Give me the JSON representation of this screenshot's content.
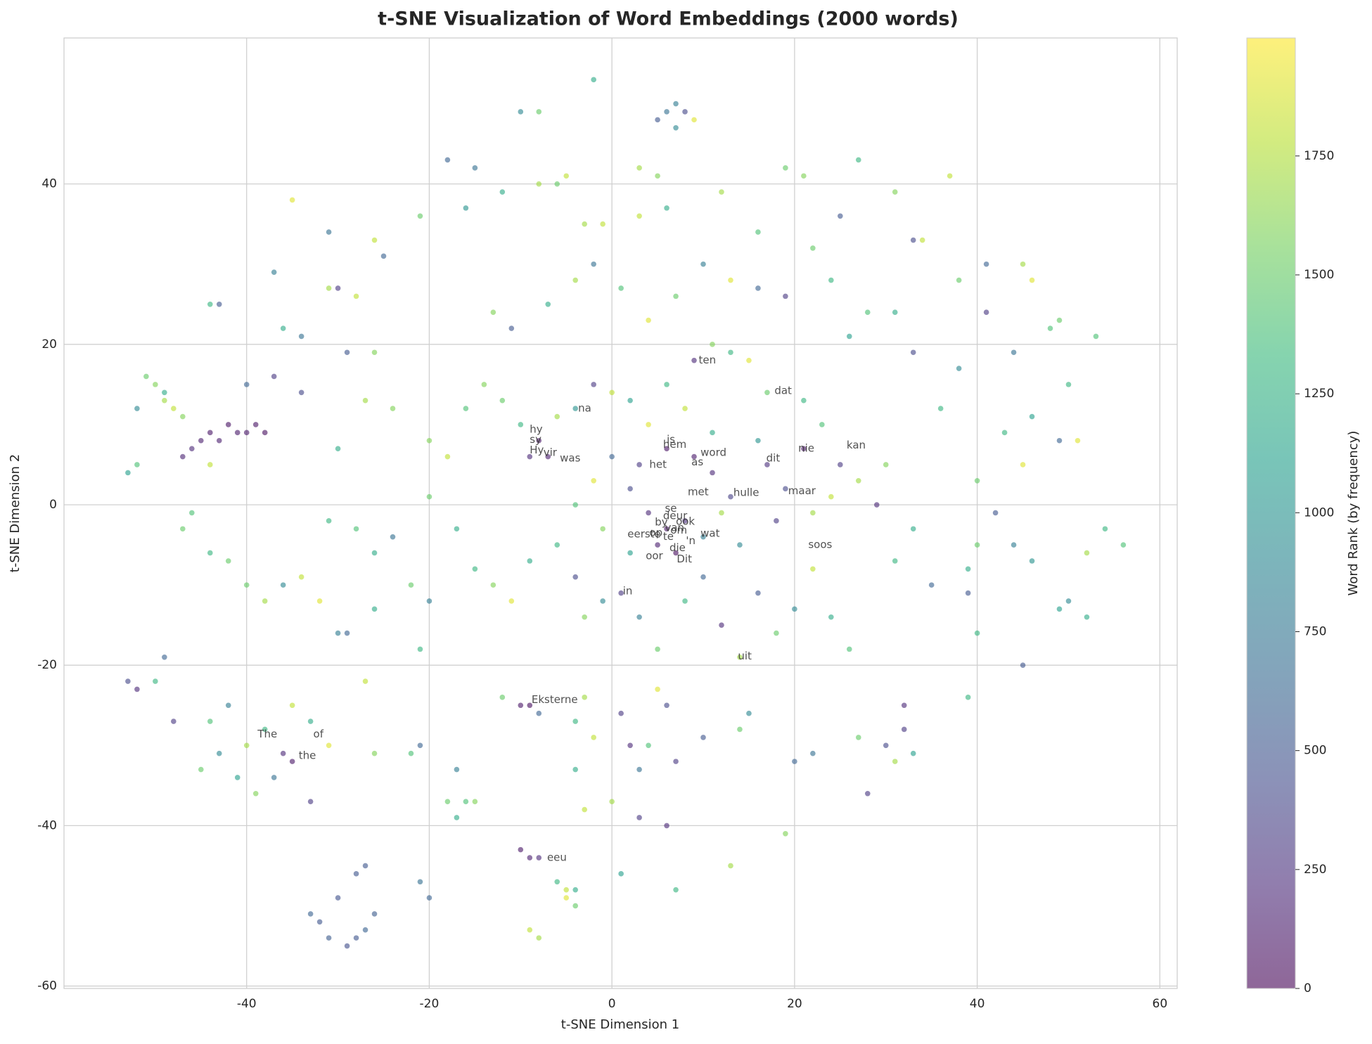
{
  "chart_data": {
    "type": "scatter",
    "title": "t-SNE Visualization of Word Embeddings (2000 words)",
    "x_label": "t-SNE Dimension 1",
    "y_label": "t-SNE Dimension 2",
    "colorbar_label": "Word Rank (by frequency)",
    "colormap": "viridis",
    "alpha": 0.6,
    "grid": true,
    "xlim": [
      -60,
      61.9
    ],
    "ylim": [
      -60.3,
      58.2
    ],
    "xticks": [
      -40,
      -20,
      0,
      20,
      40,
      60
    ],
    "yticks": [
      -60,
      -40,
      -20,
      0,
      20,
      40
    ],
    "clim": [
      0,
      1998
    ],
    "cticks": [
      0,
      250,
      500,
      750,
      1000,
      1250,
      1500,
      1750
    ],
    "x": [
      -44,
      -43,
      -42,
      -41,
      -39,
      -38,
      -46,
      -47,
      -40,
      -45,
      -51,
      -50,
      -49,
      -48,
      -52,
      -53,
      -52,
      -47,
      -49,
      -44,
      -43,
      -44,
      -37,
      -31,
      -30,
      -31,
      -28,
      -35,
      -26,
      -25,
      -36,
      -34,
      -40,
      -37,
      -34,
      -26,
      -29,
      -27,
      -24,
      -30,
      -46,
      -47,
      -44,
      -42,
      -40,
      -38,
      -36,
      -34,
      -32,
      -30,
      -31,
      -28,
      -26,
      -24,
      -22,
      -20,
      -21,
      -26,
      -29,
      -27,
      -53,
      -52,
      -50,
      -48,
      -49,
      -44,
      -42,
      -40,
      -38,
      -36,
      -35,
      -33,
      -35,
      -41,
      -43,
      -45,
      -39,
      -37,
      -33,
      -31,
      -33,
      -32,
      -31,
      -29,
      -28,
      -27,
      -26,
      -28,
      -27,
      -30,
      -21,
      -20,
      -21,
      -26,
      -22,
      -18,
      -17,
      -16,
      -17,
      -15,
      -10,
      -9,
      -8,
      -6,
      -5,
      -4,
      -5,
      -4,
      -9,
      -8,
      -10,
      -9,
      -12,
      -8,
      -3,
      -4,
      -2,
      -4,
      -3,
      0,
      1,
      2,
      4,
      3,
      5,
      6,
      3,
      6,
      7,
      1,
      7,
      10,
      13,
      14,
      15,
      19,
      20,
      22,
      28,
      27,
      31,
      30,
      32,
      32,
      33,
      45,
      39,
      49,
      50,
      52,
      -8,
      -6,
      -5,
      -3,
      -1,
      -2,
      3,
      5,
      3,
      6,
      5,
      6,
      7,
      8,
      9,
      7,
      -10,
      -8,
      -18,
      -15,
      -21,
      -16,
      -12,
      19,
      21,
      27,
      31,
      37,
      12,
      16,
      25,
      33,
      34,
      41,
      45,
      46,
      41,
      44,
      48,
      49,
      53,
      50,
      46,
      43,
      49,
      51,
      38,
      38,
      36,
      40,
      45,
      42,
      40,
      44,
      46,
      54,
      56,
      52,
      39,
      39,
      40,
      35,
      31,
      33,
      29,
      27,
      30,
      25,
      23,
      21,
      17,
      15,
      13,
      11,
      9,
      8,
      6,
      4,
      2,
      0,
      -2,
      -4,
      -6,
      -9,
      -8,
      -7,
      -10,
      -12,
      -14,
      -16,
      -18,
      -20,
      -20,
      -17,
      -15,
      -13,
      -11,
      -9,
      -6,
      -4,
      -3,
      -1,
      1,
      3,
      5,
      8,
      10,
      12,
      14,
      16,
      18,
      20,
      22,
      24,
      26,
      2,
      4,
      6,
      5,
      7,
      8,
      3,
      6,
      9,
      11,
      13,
      17,
      19,
      21,
      16,
      11,
      0,
      -2,
      -4,
      -1,
      2,
      10,
      12,
      14,
      18,
      22,
      24,
      -11,
      -13,
      -7,
      -4,
      -2,
      1,
      4,
      7,
      10,
      13,
      16,
      19,
      22,
      24,
      26,
      28,
      31,
      33
    ],
    "values": [
      9,
      8,
      10,
      9,
      10,
      9,
      7,
      6,
      9,
      8,
      16,
      15,
      13,
      12,
      12,
      4,
      5,
      11,
      14,
      5,
      25,
      25,
      29,
      34,
      27,
      27,
      26,
      38,
      33,
      31,
      22,
      21,
      15,
      16,
      14,
      19,
      19,
      13,
      12,
      7,
      -1,
      -3,
      -6,
      -7,
      -10,
      -12,
      -10,
      -9,
      -12,
      -16,
      -2,
      -3,
      -6,
      -4,
      -10,
      -12,
      -18,
      -13,
      -16,
      -22,
      -22,
      -23,
      -22,
      -27,
      -19,
      -27,
      -25,
      -30,
      -28,
      -31,
      -32,
      -27,
      -25,
      -34,
      -31,
      -33,
      -36,
      -34,
      -37,
      -30,
      -51,
      -52,
      -54,
      -55,
      -54,
      -53,
      -51,
      -46,
      -45,
      -49,
      -47,
      -49,
      -30,
      -31,
      -31,
      -37,
      -39,
      -37,
      -33,
      -37,
      -43,
      -44,
      -44,
      -47,
      -48,
      -50,
      -49,
      -48,
      -53,
      -54,
      -25,
      -25,
      -24,
      -26,
      -24,
      -27,
      -29,
      -33,
      -38,
      -37,
      -26,
      -30,
      -30,
      -33,
      -23,
      -25,
      -39,
      -40,
      -32,
      -46,
      -48,
      -29,
      -45,
      -28,
      -26,
      -41,
      -32,
      -31,
      -36,
      -29,
      -32,
      -30,
      -25,
      -28,
      -31,
      -20,
      -24,
      -13,
      -12,
      -14,
      40,
      40,
      41,
      35,
      35,
      53,
      42,
      41,
      36,
      37,
      48,
      49,
      50,
      49,
      48,
      47,
      49,
      49,
      43,
      42,
      36,
      37,
      39,
      42,
      41,
      43,
      39,
      41,
      39,
      34,
      36,
      33,
      33,
      30,
      30,
      28,
      24,
      19,
      22,
      23,
      21,
      15,
      11,
      9,
      8,
      8,
      28,
      17,
      12,
      3,
      5,
      -1,
      -5,
      -5,
      -7,
      -3,
      -5,
      -6,
      -8,
      -11,
      -16,
      -10,
      -7,
      -3,
      0,
      3,
      5,
      5,
      10,
      13,
      14,
      18,
      19,
      20,
      18,
      12,
      15,
      10,
      13,
      14,
      15,
      12,
      11,
      6,
      8,
      6,
      10,
      13,
      15,
      12,
      6,
      8,
      1,
      -3,
      -8,
      -10,
      -12,
      -7,
      -5,
      -9,
      -14,
      -12,
      -11,
      -14,
      -18,
      -12,
      -9,
      -15,
      -19,
      -11,
      -16,
      -13,
      -8,
      -14,
      -18,
      2,
      -1,
      -3,
      -5,
      -6,
      -2,
      5,
      7,
      6,
      4,
      1,
      5,
      2,
      7,
      8,
      9,
      6,
      3,
      0,
      -3,
      -6,
      -4,
      -1,
      -5,
      -2,
      -1,
      1,
      22,
      24,
      25,
      28,
      30,
      27,
      23,
      26,
      30,
      28,
      27,
      26,
      32,
      28,
      21,
      24,
      24,
      19
    ],
    "ranks": [
      100,
      150,
      80,
      120,
      90,
      60,
      200,
      180,
      110,
      140,
      1500,
      1600,
      1700,
      1800,
      900,
      1100,
      1400,
      1600,
      1200,
      1800,
      500,
      1300,
      800,
      700,
      300,
      1700,
      1800,
      1900,
      1800,
      600,
      1200,
      700,
      600,
      300,
      400,
      1600,
      500,
      1700,
      1600,
      1200,
      1400,
      1500,
      1300,
      1500,
      1500,
      1700,
      900,
      1800,
      1900,
      800,
      1300,
      1400,
      1200,
      700,
      1500,
      800,
      1300,
      1200,
      600,
      1800,
      400,
      200,
      1300,
      300,
      600,
      1400,
      800,
      1700,
      1300,
      200,
      100,
      1200,
      1800,
      1100,
      900,
      1500,
      1600,
      700,
      300,
      1900,
      600,
      500,
      550,
      450,
      500,
      600,
      550,
      500,
      520,
      480,
      700,
      600,
      600,
      1600,
      1400,
      1500,
      1200,
      1400,
      800,
      1600,
      100,
      150,
      200,
      1300,
      1800,
      1500,
      1900,
      1200,
      1800,
      1700,
      100,
      50,
      1500,
      600,
      1700,
      1300,
      1800,
      1200,
      1800,
      1700,
      300,
      200,
      1400,
      700,
      1900,
      400,
      300,
      200,
      300,
      1100,
      1300,
      500,
      1700,
      1500,
      900,
      1600,
      600,
      700,
      300,
      1500,
      1700,
      400,
      200,
      300,
      1100,
      500,
      1300,
      1100,
      900,
      1200,
      1700,
      1500,
      1800,
      1700,
      1800,
      1200,
      1700,
      1600,
      1800,
      1200,
      500,
      700,
      800,
      400,
      1900,
      900,
      900,
      1500,
      600,
      700,
      1500,
      1000,
      1200,
      1500,
      1600,
      1300,
      1600,
      1800,
      1700,
      1400,
      500,
      400,
      1800,
      600,
      1700,
      1900,
      300,
      700,
      1400,
      1500,
      1400,
      1300,
      1100,
      1300,
      600,
      1900,
      1500,
      900,
      1300,
      1500,
      1900,
      500,
      1500,
      800,
      1000,
      1300,
      1400,
      1700,
      1200,
      500,
      1300,
      600,
      1300,
      1200,
      200,
      1700,
      1600,
      300,
      1400,
      1300,
      1500,
      1900,
      1300,
      1600,
      200,
      1800,
      1300,
      1900,
      1100,
      1800,
      300,
      1000,
      1700,
      200,
      100,
      150,
      1300,
      1500,
      1600,
      1400,
      1800,
      1600,
      1500,
      1200,
      1300,
      1600,
      1900,
      1200,
      1300,
      400,
      1600,
      900,
      300,
      800,
      1500,
      1300,
      600,
      200,
      1700,
      500,
      1500,
      900,
      1800,
      1200,
      1400,
      400,
      200,
      100,
      150,
      50,
      250,
      300,
      80,
      120,
      200,
      350,
      250,
      400,
      100,
      1000,
      1200,
      600,
      1900,
      1400,
      1600,
      1100,
      800,
      1700,
      900,
      300,
      1700,
      1800,
      500,
      1600,
      1200,
      1700,
      700,
      1400,
      1900,
      1500,
      800,
      1900,
      600,
      300,
      1500,
      1300,
      1100,
      1400,
      1200,
      400
    ],
    "annotations": [
      {
        "text": "na",
        "x": -3.7,
        "y": 12.0
      },
      {
        "text": "hy",
        "x": -9.0,
        "y": 9.4
      },
      {
        "text": "sy",
        "x": -9.0,
        "y": 8.1
      },
      {
        "text": "Hy",
        "x": -9.0,
        "y": 6.8
      },
      {
        "text": "vir",
        "x": -7.5,
        "y": 6.5
      },
      {
        "text": "was",
        "x": -5.7,
        "y": 5.8
      },
      {
        "text": "is",
        "x": 6.0,
        "y": 8.1
      },
      {
        "text": "hem",
        "x": 5.6,
        "y": 7.5
      },
      {
        "text": "het",
        "x": 4.1,
        "y": 5.0
      },
      {
        "text": "as",
        "x": 8.7,
        "y": 5.3
      },
      {
        "text": "word",
        "x": 9.7,
        "y": 6.5
      },
      {
        "text": "dat",
        "x": 17.8,
        "y": 14.2
      },
      {
        "text": "ten",
        "x": 9.5,
        "y": 18.0
      },
      {
        "text": "nie",
        "x": 20.4,
        "y": 7.0
      },
      {
        "text": "kan",
        "x": 25.7,
        "y": 7.4
      },
      {
        "text": "dit",
        "x": 16.9,
        "y": 5.8
      },
      {
        "text": "met",
        "x": 8.3,
        "y": 1.6
      },
      {
        "text": "hulle",
        "x": 13.3,
        "y": 1.5
      },
      {
        "text": "maar",
        "x": 19.3,
        "y": 1.7
      },
      {
        "text": "se",
        "x": 5.8,
        "y": -0.5
      },
      {
        "text": "deur",
        "x": 5.6,
        "y": -1.4
      },
      {
        "text": "by",
        "x": 4.7,
        "y": -2.2
      },
      {
        "text": "ook",
        "x": 7.0,
        "y": -2.1
      },
      {
        "text": "van",
        "x": 5.8,
        "y": -2.9
      },
      {
        "text": "eerste",
        "x": 1.7,
        "y": -3.7
      },
      {
        "text": "op",
        "x": 4.1,
        "y": -3.5
      },
      {
        "text": "om",
        "x": 6.4,
        "y": -3.2
      },
      {
        "text": "wat",
        "x": 9.7,
        "y": -3.6
      },
      {
        "text": "te",
        "x": 5.6,
        "y": -4.0
      },
      {
        "text": "'n",
        "x": 8.1,
        "y": -4.5
      },
      {
        "text": "die",
        "x": 6.3,
        "y": -5.4
      },
      {
        "text": "oor",
        "x": 3.7,
        "y": -6.4
      },
      {
        "text": "Dit",
        "x": 7.1,
        "y": -6.8
      },
      {
        "text": "soos",
        "x": 21.5,
        "y": -5.0
      },
      {
        "text": "in",
        "x": 1.2,
        "y": -10.8
      },
      {
        "text": "uit",
        "x": 13.8,
        "y": -18.9
      },
      {
        "text": "Eksterne",
        "x": -8.8,
        "y": -24.3
      },
      {
        "text": "eeu",
        "x": -7.1,
        "y": -44.0
      },
      {
        "text": "The",
        "x": -38.8,
        "y": -28.6
      },
      {
        "text": "of",
        "x": -32.7,
        "y": -28.6
      },
      {
        "text": "the",
        "x": -34.3,
        "y": -31.3
      }
    ]
  }
}
